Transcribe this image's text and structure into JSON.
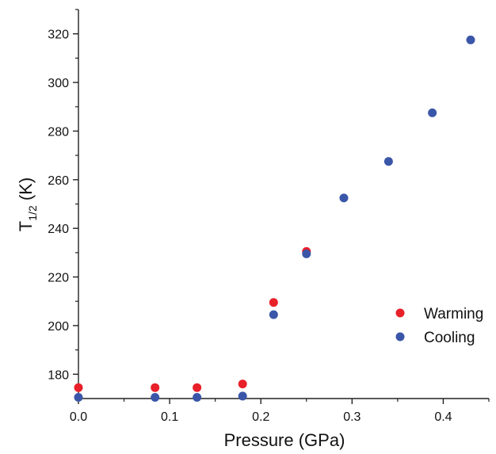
{
  "chart_data": {
    "type": "scatter",
    "title": "",
    "xlabel": "Pressure (GPa)",
    "ylabel_main": "T",
    "ylabel_sub": "1/2",
    "ylabel_unit": " (K)",
    "xlim": [
      0,
      0.45
    ],
    "ylim": [
      170,
      330
    ],
    "x_ticks": [
      0.0,
      0.1,
      0.2,
      0.3,
      0.4
    ],
    "x_tick_labels": [
      "0.0",
      "0.1",
      "0.2",
      "0.3",
      "0.4"
    ],
    "x_minor_ticks": [
      0.05,
      0.15,
      0.25,
      0.35,
      0.45
    ],
    "y_ticks": [
      180,
      200,
      220,
      240,
      260,
      280,
      300,
      320
    ],
    "y_tick_labels": [
      "180",
      "200",
      "220",
      "240",
      "260",
      "280",
      "300",
      "320"
    ],
    "y_minor_ticks": [
      190,
      210,
      230,
      250,
      270,
      290,
      310,
      330
    ],
    "grid": false,
    "legend_position": "right",
    "series": [
      {
        "name": "Warming",
        "color": "#e8202a",
        "points": [
          {
            "x": 0.0,
            "y": 174.5
          },
          {
            "x": 0.084,
            "y": 174.5
          },
          {
            "x": 0.13,
            "y": 174.5
          },
          {
            "x": 0.18,
            "y": 176.0
          },
          {
            "x": 0.214,
            "y": 209.5
          },
          {
            "x": 0.25,
            "y": 230.5
          }
        ]
      },
      {
        "name": "Cooling",
        "color": "#3a56a8",
        "points": [
          {
            "x": 0.0,
            "y": 170.5
          },
          {
            "x": 0.084,
            "y": 170.5
          },
          {
            "x": 0.13,
            "y": 170.5
          },
          {
            "x": 0.18,
            "y": 171.0
          },
          {
            "x": 0.214,
            "y": 204.5
          },
          {
            "x": 0.25,
            "y": 229.5
          },
          {
            "x": 0.291,
            "y": 252.5
          },
          {
            "x": 0.34,
            "y": 267.5
          },
          {
            "x": 0.388,
            "y": 287.5
          },
          {
            "x": 0.43,
            "y": 317.5
          }
        ]
      }
    ]
  }
}
